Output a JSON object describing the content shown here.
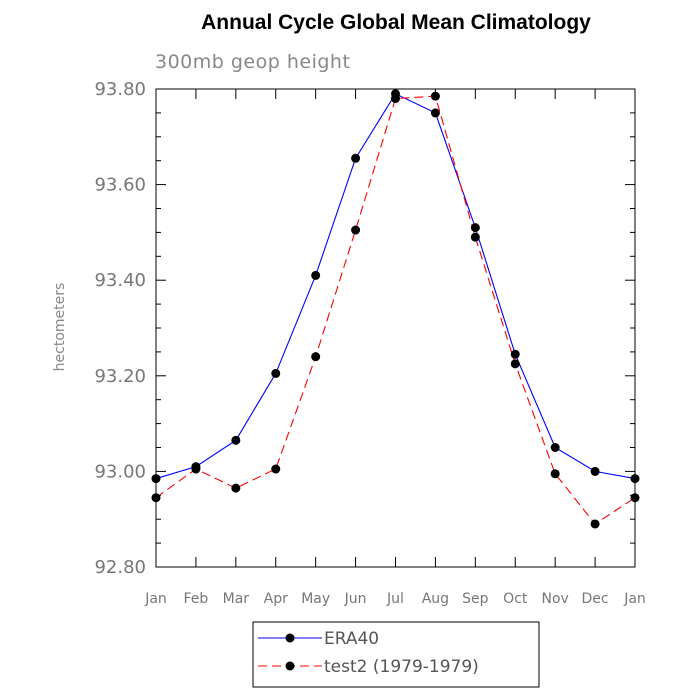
{
  "chart_data": {
    "type": "line",
    "title": "Annual Cycle Global Mean Climatology",
    "subtitle": "300mb geop height",
    "ylabel": "hectometers",
    "xlabel": "",
    "categories": [
      "Jan",
      "Feb",
      "Mar",
      "Apr",
      "May",
      "Jun",
      "Jul",
      "Aug",
      "Sep",
      "Oct",
      "Nov",
      "Dec",
      "Jan"
    ],
    "ylim": [
      92.8,
      93.8
    ],
    "yticks": [
      "92.80",
      "93.00",
      "93.20",
      "93.40",
      "93.60",
      "93.80"
    ],
    "series": [
      {
        "name": "ERA40",
        "color": "#0000ff",
        "line_style": "solid",
        "marker": "filled-circle",
        "values": [
          92.985,
          93.01,
          93.065,
          93.205,
          93.41,
          93.655,
          93.79,
          93.75,
          93.51,
          93.245,
          93.05,
          93.0,
          92.985
        ]
      },
      {
        "name": "test2 (1979-1979)",
        "color": "#ff0000",
        "line_style": "dashed",
        "marker": "filled-circle",
        "values": [
          92.945,
          93.005,
          92.965,
          93.005,
          93.24,
          93.505,
          93.78,
          93.785,
          93.49,
          93.225,
          92.995,
          92.89,
          92.945
        ]
      }
    ],
    "grid": false,
    "legend": "bottom-center"
  }
}
